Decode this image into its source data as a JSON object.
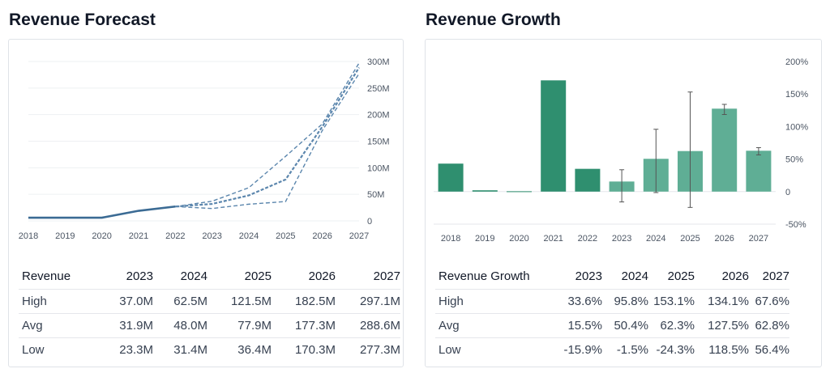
{
  "forecast": {
    "title": "Revenue Forecast",
    "chart_data": {
      "type": "line",
      "x": [
        "2018",
        "2019",
        "2020",
        "2021",
        "2022",
        "2023",
        "2024",
        "2025",
        "2026",
        "2027"
      ],
      "yticks": [
        "0",
        "50M",
        "100M",
        "150M",
        "200M",
        "250M",
        "300M"
      ],
      "ylim": [
        0,
        300
      ],
      "grid": true,
      "historical": {
        "x": [
          "2018",
          "2019",
          "2020",
          "2021",
          "2022"
        ],
        "values": [
          6,
          6,
          6,
          19,
          27
        ]
      },
      "series": [
        {
          "name": "High",
          "x": [
            "2022",
            "2023",
            "2024",
            "2025",
            "2026",
            "2027"
          ],
          "values": [
            27,
            37.0,
            62.5,
            121.5,
            182.5,
            297.1
          ]
        },
        {
          "name": "Avg",
          "x": [
            "2022",
            "2023",
            "2024",
            "2025",
            "2026",
            "2027"
          ],
          "values": [
            27,
            31.9,
            48.0,
            77.9,
            177.3,
            288.6
          ]
        },
        {
          "name": "Low",
          "x": [
            "2022",
            "2023",
            "2024",
            "2025",
            "2026",
            "2027"
          ],
          "values": [
            27,
            23.3,
            31.4,
            36.4,
            170.3,
            277.3
          ]
        }
      ],
      "colors": {
        "line": "#3b6b94",
        "dashed": "#5b86ad",
        "grid": "#eef0f3"
      }
    },
    "table": {
      "headers": [
        "Revenue",
        "2023",
        "2024",
        "2025",
        "2026",
        "2027"
      ],
      "rows": [
        [
          "High",
          "37.0M",
          "62.5M",
          "121.5M",
          "182.5M",
          "297.1M"
        ],
        [
          "Avg",
          "31.9M",
          "48.0M",
          "77.9M",
          "177.3M",
          "288.6M"
        ],
        [
          "Low",
          "23.3M",
          "31.4M",
          "36.4M",
          "170.3M",
          "277.3M"
        ]
      ]
    }
  },
  "growth": {
    "title": "Revenue Growth",
    "chart_data": {
      "type": "bar",
      "categories": [
        "2018",
        "2019",
        "2020",
        "2021",
        "2022",
        "2023",
        "2024",
        "2025",
        "2026",
        "2027"
      ],
      "values": [
        43,
        2,
        0.5,
        171,
        35,
        15.5,
        50.4,
        62.3,
        127.5,
        62.8
      ],
      "error_low": [
        null,
        null,
        null,
        null,
        null,
        -15.9,
        -1.5,
        -24.3,
        118.5,
        56.4
      ],
      "error_high": [
        null,
        null,
        null,
        null,
        null,
        33.6,
        95.8,
        153.1,
        134.1,
        67.6
      ],
      "forecast_from": "2023",
      "yticks": [
        "200%",
        "150%",
        "100%",
        "50%",
        "0",
        "-50%"
      ],
      "ylim": [
        -50,
        200
      ],
      "colors": {
        "historical": "#2f8f6f",
        "forecast": "#5fae95",
        "errorbar": "#555555"
      }
    },
    "table": {
      "headers": [
        "Revenue Growth",
        "2023",
        "2024",
        "2025",
        "2026",
        "2027"
      ],
      "rows": [
        [
          "High",
          "33.6%",
          "95.8%",
          "153.1%",
          "134.1%",
          "67.6%"
        ],
        [
          "Avg",
          "15.5%",
          "50.4%",
          "62.3%",
          "127.5%",
          "62.8%"
        ],
        [
          "Low",
          "-15.9%",
          "-1.5%",
          "-24.3%",
          "118.5%",
          "56.4%"
        ]
      ]
    }
  }
}
